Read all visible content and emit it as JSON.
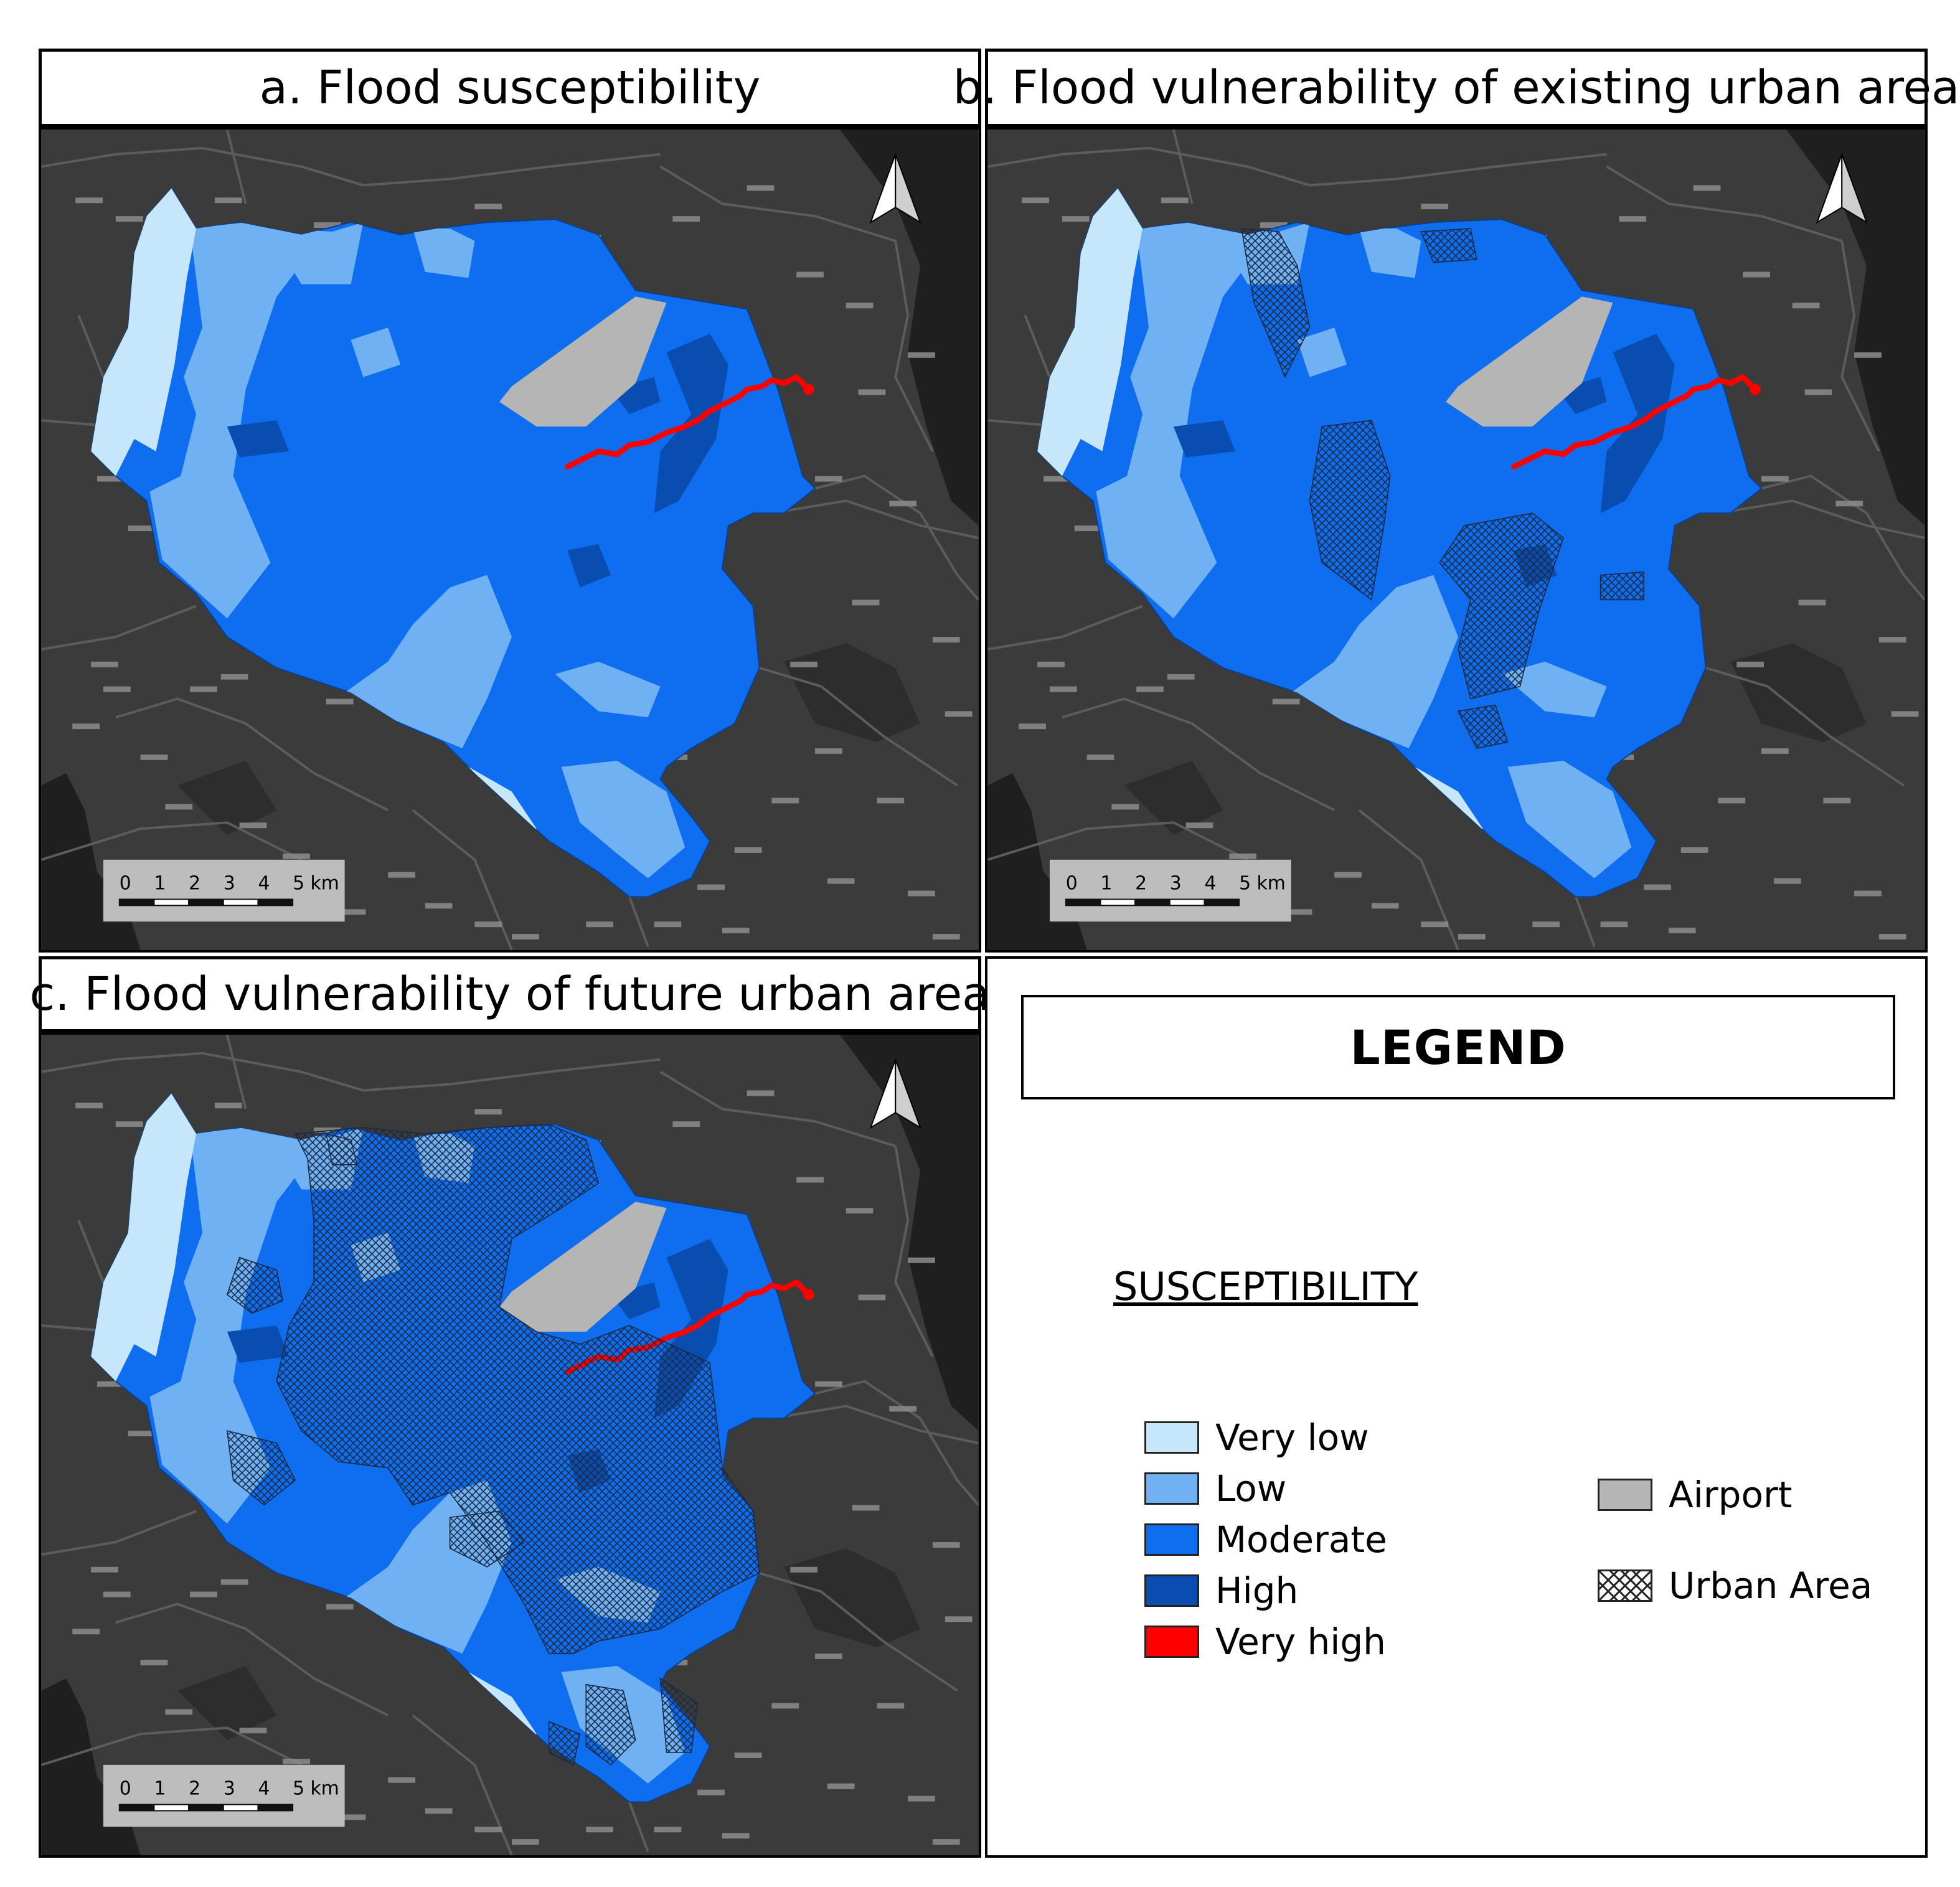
{
  "panels": [
    {
      "title": "a. Flood susceptibility",
      "urban": "none"
    },
    {
      "title": "b. Flood vulnerability of existing urban area",
      "urban": "existing"
    },
    {
      "title": "c. Flood vulnerability of future urban area",
      "urban": "future"
    }
  ],
  "scalebar": {
    "ticks": [
      "0",
      "1",
      "2",
      "3",
      "4",
      "5 km"
    ]
  },
  "legend": {
    "title": "LEGEND",
    "heading": "SUSCEPTIBILITY",
    "classes": [
      {
        "label": "Very low",
        "color": "#c6e6fb"
      },
      {
        "label": "Low",
        "color": "#6fb1f2"
      },
      {
        "label": "Moderate",
        "color": "#0f6ef0"
      },
      {
        "label": "High",
        "color": "#0a4db0"
      },
      {
        "label": "Very high",
        "color": "#ff0000"
      }
    ],
    "airport": {
      "label": "Airport",
      "color": "#b5b5b5"
    },
    "urban": {
      "label": "Urban Area"
    }
  },
  "colors": {
    "basemap": "#3b3b3b",
    "sea": "#1f1f1f",
    "roads": "#5c5c5c"
  }
}
